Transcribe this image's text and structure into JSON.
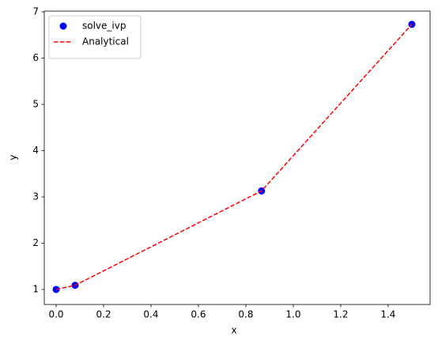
{
  "chart_data": {
    "type": "line",
    "x_label": "x",
    "y_label": "y",
    "x": [
      0,
      0.08,
      0.866,
      1.5
    ],
    "series": [
      {
        "name": "solve_ivp",
        "color": "#0000ff",
        "kind": "scatter",
        "values": [
          1.0,
          1.09,
          3.13,
          6.73
        ]
      },
      {
        "name": "Analytical",
        "color": "#ff0000",
        "kind": "dashed",
        "values": [
          1.0,
          1.09,
          3.13,
          6.73
        ]
      }
    ],
    "xlim": [
      -0.05,
      1.577
    ],
    "ylim": [
      0.675,
      7.017
    ],
    "xticks": [
      {
        "value": 0,
        "label": "0.0"
      },
      0.2,
      0.4,
      0.6,
      0.8,
      {
        "value": 1,
        "label": "1.0"
      },
      1.2,
      1.4
    ],
    "yticks": [
      1,
      2,
      3,
      4,
      5,
      6,
      7
    ],
    "legend": "upper left",
    "grid": false
  }
}
